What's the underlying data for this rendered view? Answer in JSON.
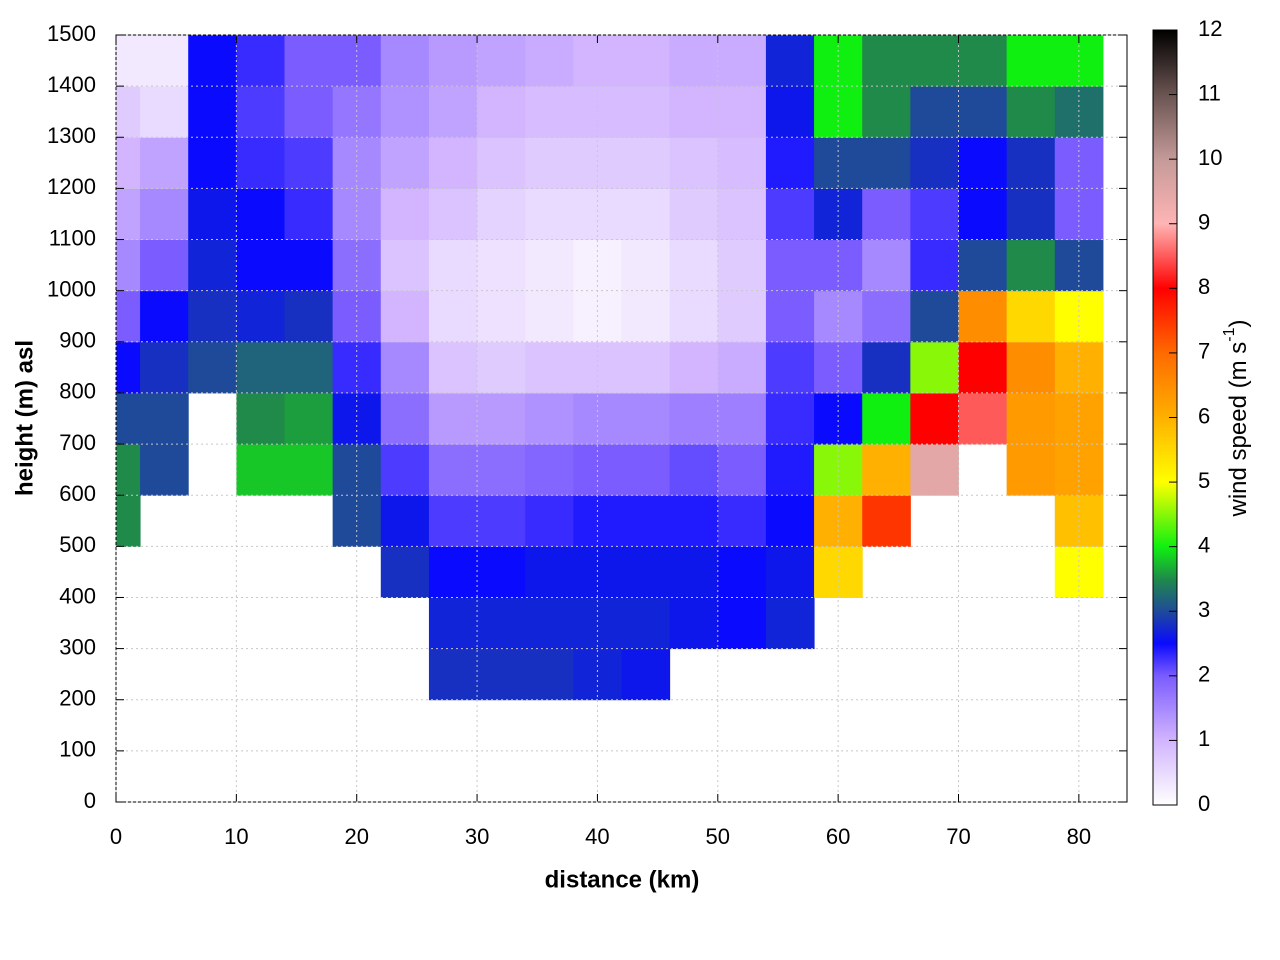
{
  "chart_data": {
    "type": "heatmap",
    "xlabel": "distance (km)",
    "ylabel": "height (m) asl",
    "colorbar_label": [
      "wind speed (m s",
      "-1",
      ")"
    ],
    "x": [
      0,
      4,
      8,
      12,
      16,
      20,
      24,
      28,
      32,
      36,
      40,
      44,
      48,
      52,
      56,
      60,
      64,
      68,
      72,
      76,
      80
    ],
    "y": [
      50,
      150,
      250,
      350,
      450,
      550,
      650,
      750,
      850,
      950,
      1050,
      1150,
      1250,
      1350,
      1450
    ],
    "values": [
      [
        null,
        null,
        null,
        null,
        null,
        3.5,
        3.5,
        3,
        2.5,
        2,
        1.5,
        1.2,
        1,
        0.7,
        0.3
      ],
      [
        null,
        null,
        null,
        null,
        null,
        null,
        3,
        3,
        2.8,
        2.5,
        2,
        1.5,
        1.2,
        0.5,
        0.3
      ],
      [
        null,
        null,
        null,
        null,
        null,
        null,
        null,
        null,
        3,
        2.8,
        2.7,
        2.6,
        2.5,
        2.5,
        2.5
      ],
      [
        null,
        null,
        null,
        null,
        null,
        null,
        3.8,
        3.5,
        3.2,
        2.7,
        2.5,
        2.5,
        2.3,
        2.2,
        2.3
      ],
      [
        null,
        null,
        null,
        null,
        null,
        null,
        3.8,
        3.6,
        3.2,
        2.8,
        2.5,
        2.3,
        2.2,
        2,
        2
      ],
      [
        null,
        null,
        null,
        null,
        null,
        3,
        3,
        2.6,
        2.3,
        2,
        1.8,
        1.5,
        1.5,
        1.7,
        2
      ],
      [
        null,
        null,
        null,
        null,
        2.8,
        2.6,
        2.2,
        1.8,
        1.5,
        1,
        0.8,
        1,
        1.2,
        1.4,
        1.5
      ],
      [
        null,
        null,
        2.8,
        2.7,
        2.5,
        2.2,
        1.8,
        1.3,
        0.8,
        0.5,
        0.5,
        0.8,
        1,
        1.2,
        1.3
      ],
      [
        null,
        null,
        2.8,
        2.7,
        2.5,
        2.2,
        1.8,
        1.3,
        0.7,
        0.4,
        0.4,
        0.6,
        0.8,
        1,
        1.2
      ],
      [
        null,
        null,
        2.8,
        2.7,
        2.6,
        2.3,
        1.9,
        1.4,
        0.8,
        0.3,
        0.3,
        0.5,
        0.7,
        0.9,
        1.1
      ],
      [
        null,
        null,
        2.7,
        2.7,
        2.6,
        2.4,
        2,
        1.5,
        0.8,
        0.2,
        0.2,
        0.5,
        0.7,
        0.9,
        1
      ],
      [
        null,
        null,
        2.6,
        2.7,
        2.6,
        2.4,
        2,
        1.5,
        0.8,
        0.3,
        0.3,
        0.5,
        0.7,
        0.9,
        1
      ],
      [
        null,
        null,
        null,
        2.6,
        2.6,
        2.4,
        2.1,
        1.6,
        1,
        0.5,
        0.5,
        0.7,
        0.8,
        1,
        1.1
      ],
      [
        null,
        null,
        null,
        2.5,
        2.5,
        2.3,
        2,
        1.6,
        1.1,
        0.7,
        0.7,
        0.8,
        0.9,
        1,
        1.1
      ],
      [
        null,
        null,
        null,
        2.7,
        2.6,
        2.5,
        2.4,
        2.3,
        2.2,
        2,
        2,
        2.2,
        2.4,
        2.6,
        2.7
      ],
      [
        null,
        null,
        null,
        null,
        5.5,
        6,
        4.5,
        2.5,
        2,
        1.5,
        2,
        2.7,
        3,
        4,
        4
      ],
      [
        null,
        null,
        null,
        null,
        null,
        7.5,
        6,
        4,
        2.8,
        1.8,
        1.5,
        2,
        3,
        3.5,
        3.5
      ],
      [
        null,
        null,
        null,
        null,
        null,
        null,
        9.5,
        8,
        4.5,
        3,
        2.3,
        2.2,
        2.8,
        3,
        3.5
      ],
      [
        null,
        null,
        null,
        null,
        null,
        null,
        null,
        8.5,
        8,
        6.5,
        3,
        2.5,
        2.5,
        3,
        3.5
      ],
      [
        null,
        null,
        null,
        null,
        null,
        null,
        6.3,
        6.3,
        6.5,
        5.5,
        3.5,
        2.8,
        2.8,
        3.5,
        4
      ],
      [
        null,
        null,
        null,
        null,
        5,
        5.8,
        6.2,
        6.2,
        6,
        5,
        3,
        2,
        2,
        3.3,
        4
      ]
    ],
    "cell_width": 4,
    "cell_height": 100,
    "xlim": [
      0,
      84
    ],
    "ylim": [
      0,
      1500
    ],
    "xticks": [
      0,
      10,
      20,
      30,
      40,
      50,
      60,
      70,
      80
    ],
    "yticks": [
      0,
      100,
      200,
      300,
      400,
      500,
      600,
      700,
      800,
      900,
      1000,
      1100,
      1200,
      1300,
      1400,
      1500
    ],
    "clim": [
      0,
      12
    ],
    "cticks": [
      0,
      1,
      2,
      3,
      4,
      5,
      6,
      7,
      8,
      9,
      10,
      11,
      12
    ],
    "colorscale": [
      [
        0,
        "#ffffff"
      ],
      [
        1,
        "#d2b4ff"
      ],
      [
        2,
        "#7a5cff"
      ],
      [
        2.5,
        "#0a0aff"
      ],
      [
        3,
        "#1f4a9a"
      ],
      [
        3.5,
        "#1f8a4a"
      ],
      [
        4,
        "#10f010"
      ],
      [
        5,
        "#ffff00"
      ],
      [
        6,
        "#ffb000"
      ],
      [
        7,
        "#ff6a00"
      ],
      [
        8,
        "#ff0000"
      ],
      [
        9,
        "#ffb4b4"
      ],
      [
        10,
        "#c49a98"
      ],
      [
        11,
        "#6a5452"
      ],
      [
        12,
        "#000000"
      ]
    ],
    "grid": true
  }
}
